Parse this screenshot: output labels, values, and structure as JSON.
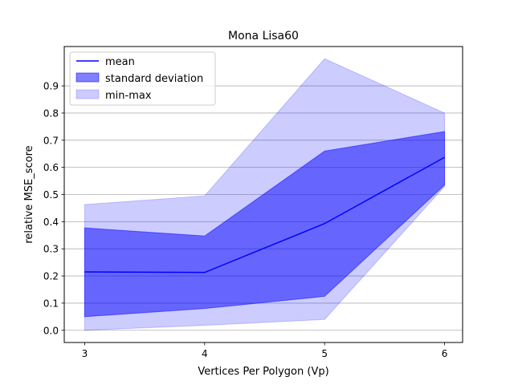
{
  "chart_data": {
    "type": "area",
    "title": "Mona Lisa60",
    "xlabel": "Vertices Per Polygon (Vp)",
    "ylabel": "relative MSE_score",
    "x": [
      3,
      4,
      5,
      6
    ],
    "xlim": [
      2.83,
      6.15
    ],
    "ylim": [
      -0.045,
      1.045
    ],
    "xticks": [
      "3",
      "4",
      "5",
      "6"
    ],
    "yticks": [
      "0.0",
      "0.1",
      "0.2",
      "0.3",
      "0.4",
      "0.5",
      "0.6",
      "0.7",
      "0.8",
      "0.9"
    ],
    "grid": "horizontal",
    "legend_position": "top-left",
    "series": [
      {
        "name": "mean",
        "kind": "line",
        "color": "#0000ff",
        "values": [
          0.215,
          0.213,
          0.393,
          0.637
        ]
      },
      {
        "name": "standard deviation",
        "kind": "band",
        "color": "#0000ff",
        "opacity": 0.5,
        "lower": [
          0.05,
          0.08,
          0.125,
          0.535
        ],
        "upper": [
          0.377,
          0.347,
          0.66,
          0.732
        ]
      },
      {
        "name": "min-max",
        "kind": "band",
        "color": "#0000ff",
        "opacity": 0.2,
        "lower": [
          0.0,
          0.018,
          0.04,
          0.53
        ],
        "upper": [
          0.463,
          0.495,
          1.0,
          0.8
        ]
      }
    ]
  }
}
